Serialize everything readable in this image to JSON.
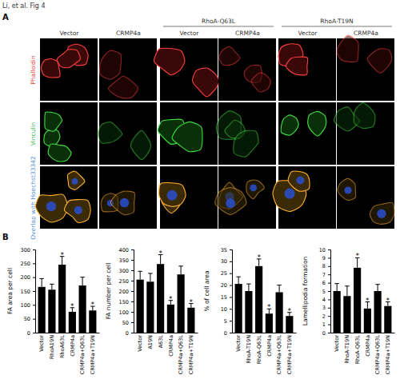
{
  "title": "Li, et al. Fig 4",
  "panel_a": {
    "label": "A",
    "headers": [
      {
        "label": "Vector"
      },
      {
        "label": "CRMP4a"
      },
      {
        "group": "RhoA-Q63L",
        "columns": [
          "Vector",
          "CRMP4a"
        ]
      },
      {
        "group": "RhoA-T19N",
        "columns": [
          "Vector",
          "CRMP4a"
        ]
      }
    ],
    "rows": [
      {
        "label": "Phalloidin",
        "color": "#e03a3a"
      },
      {
        "label": "Vinculin",
        "color": "#2fb84a"
      },
      {
        "label": "Overlap with Hoechst33342",
        "color": "#5a8fd8"
      }
    ]
  },
  "panel_b_label": "B",
  "chart_data": [
    {
      "type": "bar",
      "y_label": "FA area per cell",
      "color": "#000000",
      "categories": [
        "Vector",
        "RhoA19N",
        "RhoA63L",
        "CRMP4a",
        "CRMP4a+Q63L",
        "CRMP4a+T19N"
      ],
      "values": [
        165,
        155,
        245,
        75,
        170,
        80
      ],
      "errors": [
        30,
        20,
        30,
        15,
        30,
        15
      ],
      "significance": [
        null,
        null,
        "*",
        "*",
        null,
        "*"
      ],
      "ylim": [
        0,
        300
      ],
      "yticks": [
        0,
        50,
        100,
        150,
        200,
        250,
        300
      ]
    },
    {
      "type": "bar",
      "y_label": "FA number per cell",
      "color": "#000000",
      "categories": [
        "Vector",
        "A19N",
        "A63L",
        "CRMP4a",
        "CRMP4a+Q63L",
        "CRMP4a+T19N"
      ],
      "values": [
        255,
        245,
        330,
        135,
        280,
        120
      ],
      "errors": [
        40,
        40,
        45,
        20,
        40,
        20
      ],
      "significance": [
        null,
        null,
        "*",
        "*",
        null,
        "*"
      ],
      "ylim": [
        0,
        400
      ],
      "yticks": [
        0,
        50,
        100,
        150,
        200,
        250,
        300,
        350,
        400
      ]
    },
    {
      "type": "bar",
      "y_label": "% of cell area",
      "color": "#000000",
      "categories": [
        "Vector",
        "RhoA-T19N",
        "RhoA-Q63L",
        "CRMP4a",
        "CRMP4a+Q63L",
        "CRMP4a+T19N"
      ],
      "values": [
        20.5,
        17.5,
        28,
        8,
        17,
        7
      ],
      "errors": [
        3,
        3,
        3,
        2,
        3,
        1.5
      ],
      "significance": [
        null,
        null,
        "*",
        "*",
        null,
        "*"
      ],
      "ylim": [
        0,
        35
      ],
      "yticks": [
        0,
        5,
        10,
        15,
        20,
        25,
        30,
        35
      ]
    },
    {
      "type": "bar",
      "y_label": "Lamellipodia formation",
      "color": "#000000",
      "categories": [
        "Vector",
        "RhoA-T19N",
        "RhoA-Q63L",
        "CRMP4a",
        "CRMP4a+Q63L",
        "CRMP4a+T19N"
      ],
      "values": [
        5,
        4.4,
        7.8,
        2.9,
        5,
        3.2
      ],
      "errors": [
        0.9,
        1.2,
        1.2,
        0.8,
        0.8,
        0.5
      ],
      "significance": [
        null,
        null,
        "*",
        "*",
        null,
        "*"
      ],
      "ylim": [
        0,
        10
      ],
      "yticks": [
        0,
        1,
        2,
        3,
        4,
        5,
        6,
        7,
        8,
        9,
        10
      ]
    }
  ]
}
